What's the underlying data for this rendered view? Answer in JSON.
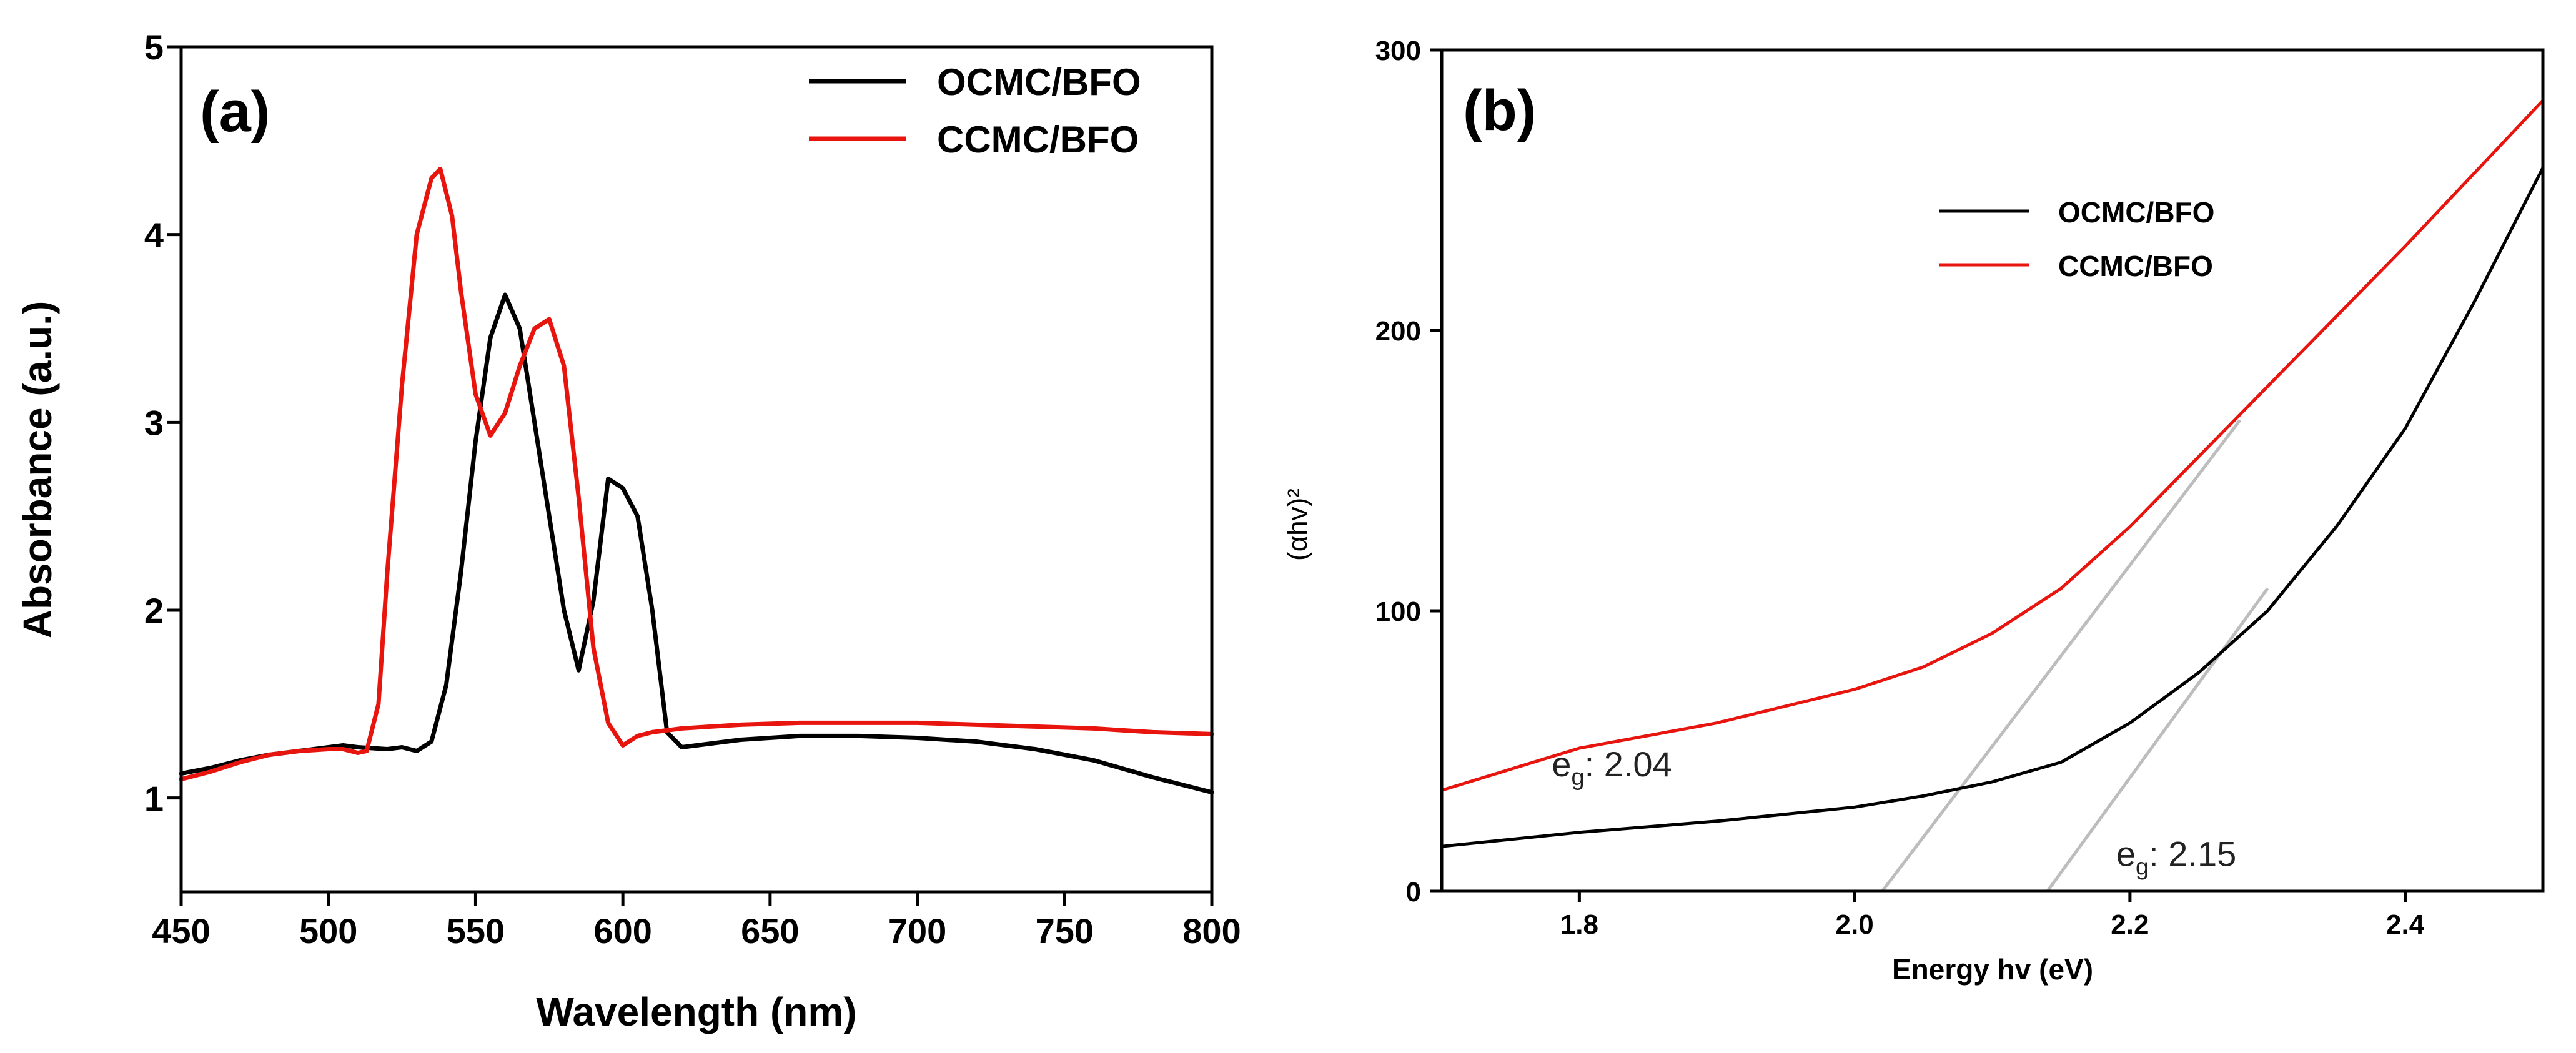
{
  "colors": {
    "ocmc": "#000000",
    "ccmc": "#e8140e",
    "fit": "#bdbdbd",
    "axis": "#000000"
  },
  "chart_data": [
    {
      "type": "line",
      "panel_label": "(a)",
      "title": "",
      "xlabel": "Wavelength (nm)",
      "ylabel": "Absorbance (a.u.)",
      "xlim": [
        450,
        800
      ],
      "ylim": [
        0.5,
        5
      ],
      "xticks": [
        450,
        500,
        550,
        600,
        650,
        700,
        750,
        800
      ],
      "yticks": [
        1,
        2,
        3,
        4,
        5
      ],
      "legend_position": "top-right",
      "series": [
        {
          "name": "OCMC/BFO",
          "color_key": "ocmc",
          "x": [
            450,
            460,
            470,
            480,
            490,
            500,
            505,
            510,
            520,
            525,
            530,
            535,
            540,
            545,
            550,
            555,
            560,
            565,
            570,
            575,
            580,
            585,
            590,
            595,
            600,
            605,
            610,
            615,
            620,
            625,
            640,
            660,
            680,
            700,
            720,
            740,
            760,
            780,
            800
          ],
          "y": [
            1.13,
            1.16,
            1.2,
            1.23,
            1.25,
            1.27,
            1.28,
            1.27,
            1.26,
            1.27,
            1.25,
            1.3,
            1.6,
            2.2,
            2.9,
            3.45,
            3.68,
            3.5,
            3.0,
            2.5,
            2.0,
            1.68,
            2.05,
            2.7,
            2.65,
            2.5,
            2.0,
            1.35,
            1.27,
            1.28,
            1.31,
            1.33,
            1.33,
            1.32,
            1.3,
            1.26,
            1.2,
            1.11,
            1.03
          ]
        },
        {
          "name": "CCMC/BFO",
          "color_key": "ccmc",
          "x": [
            450,
            460,
            470,
            480,
            490,
            500,
            505,
            510,
            513,
            517,
            520,
            525,
            530,
            535,
            538,
            542,
            545,
            550,
            555,
            560,
            565,
            570,
            575,
            580,
            585,
            590,
            595,
            600,
            605,
            610,
            620,
            640,
            660,
            680,
            700,
            720,
            740,
            760,
            780,
            800
          ],
          "y": [
            1.1,
            1.14,
            1.19,
            1.23,
            1.25,
            1.26,
            1.26,
            1.24,
            1.25,
            1.5,
            2.2,
            3.2,
            4.0,
            4.3,
            4.35,
            4.1,
            3.7,
            3.15,
            2.93,
            3.05,
            3.3,
            3.5,
            3.55,
            3.3,
            2.6,
            1.8,
            1.4,
            1.28,
            1.33,
            1.35,
            1.37,
            1.39,
            1.4,
            1.4,
            1.4,
            1.39,
            1.38,
            1.37,
            1.35,
            1.34
          ]
        }
      ]
    },
    {
      "type": "line",
      "panel_label": "(b)",
      "title": "",
      "xlabel": "Energy hv (eV)",
      "ylabel": "(αhv)²",
      "xlim": [
        1.7,
        2.5
      ],
      "ylim": [
        0,
        300
      ],
      "xticks": [
        1.8,
        2.0,
        2.2,
        2.4
      ],
      "yticks": [
        0,
        100,
        200,
        300
      ],
      "legend_position": "top-center",
      "series": [
        {
          "name": "OCMC/BFO",
          "color_key": "ocmc",
          "x": [
            1.7,
            1.8,
            1.9,
            2.0,
            2.05,
            2.1,
            2.15,
            2.2,
            2.25,
            2.3,
            2.35,
            2.4,
            2.45,
            2.5
          ],
          "y": [
            16,
            21,
            25,
            30,
            34,
            39,
            46,
            60,
            78,
            100,
            130,
            165,
            210,
            258
          ]
        },
        {
          "name": "CCMC/BFO",
          "color_key": "ccmc",
          "x": [
            1.7,
            1.8,
            1.9,
            2.0,
            2.05,
            2.1,
            2.15,
            2.2,
            2.25,
            2.3,
            2.35,
            2.4,
            2.45,
            2.5
          ],
          "y": [
            36,
            51,
            60,
            72,
            80,
            92,
            108,
            130,
            155,
            180,
            205,
            230,
            256,
            282
          ]
        }
      ],
      "tangents": [
        {
          "x": [
            2.02,
            2.28
          ],
          "y": [
            0,
            168
          ]
        },
        {
          "x": [
            2.14,
            2.3
          ],
          "y": [
            0,
            108
          ]
        }
      ],
      "annotations": [
        {
          "prefix": "e",
          "sub": "g",
          "text": ": 2.04",
          "x": 1.78,
          "y": 41
        },
        {
          "prefix": "e",
          "sub": "g",
          "text": ": 2.15",
          "x": 2.19,
          "y": 9
        }
      ]
    }
  ]
}
